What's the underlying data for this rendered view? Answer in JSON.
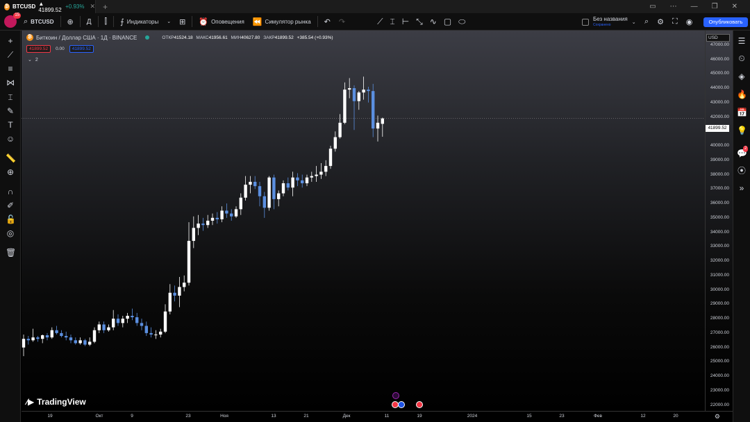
{
  "titlebar": {
    "tab_symbol": "BTCUSD",
    "tab_price": "▲ 41899.52",
    "tab_change": "+0.93%",
    "tab_icon": "bitcoin-icon",
    "controls": [
      "minimize-icon",
      "maximize-icon",
      "close-icon"
    ]
  },
  "toolbar": {
    "avatar_badge": "15",
    "symbol": "BTCUSD",
    "interval": "Д",
    "indicators_label": "Индикаторы",
    "alerts_label": "Оповещения",
    "replay_label": "Симулятор рынка",
    "layout_name": "Без названия",
    "layout_status": "Сохранено",
    "publish_label": "Опубликовать"
  },
  "legend": {
    "title": "Биткоин / Доллар США · 1Д · BINANCE",
    "open_label": "ОТКР",
    "open": "41524.18",
    "high_label": "МАКС",
    "high": "41956.61",
    "low_label": "МИН",
    "low": "40627.80",
    "close_label": "ЗАКР",
    "close": "41899.52",
    "change": "+385.54 (+0.93%)",
    "sell_price": "41899.52",
    "spread": "0.00",
    "buy_price": "41899.52",
    "indicators_count": "2"
  },
  "price_axis": {
    "currency": "USD",
    "last_price": "41899.52",
    "ticks": [
      "47000.00",
      "46000.00",
      "45000.00",
      "44000.00",
      "43000.00",
      "42000.00",
      "41000.00",
      "40000.00",
      "39000.00",
      "38000.00",
      "37000.00",
      "36000.00",
      "35000.00",
      "34000.00",
      "33000.00",
      "32000.00",
      "31000.00",
      "30000.00",
      "29000.00",
      "28000.00",
      "27000.00",
      "26000.00",
      "25000.00",
      "24000.00",
      "23000.00",
      "22000.00"
    ]
  },
  "time_axis": {
    "ticks": [
      "19",
      "Окт",
      "9",
      "23",
      "Ноя",
      "13",
      "21",
      "Дек",
      "11",
      "19",
      "2024",
      "15",
      "23",
      "Фев",
      "12",
      "20"
    ]
  },
  "branding": {
    "logo": "TradingView"
  },
  "chart_data": {
    "type": "candlestick",
    "symbol": "BTCUSD",
    "interval": "1D",
    "ylim": [
      21600,
      48000
    ],
    "up_color": "#ffffff",
    "down_color": "#5b8fe0",
    "candles": [
      [
        26000,
        26900,
        25400,
        26600
      ],
      [
        26600,
        26800,
        26200,
        26500
      ],
      [
        26500,
        27300,
        26400,
        26700
      ],
      [
        26700,
        26800,
        26400,
        26600
      ],
      [
        26600,
        26900,
        26300,
        26850
      ],
      [
        26850,
        27000,
        26500,
        26700
      ],
      [
        26700,
        27400,
        26600,
        27200
      ],
      [
        27200,
        27500,
        26900,
        27000
      ],
      [
        27000,
        27200,
        26700,
        26800
      ],
      [
        26800,
        27100,
        26500,
        26700
      ],
      [
        26700,
        26900,
        26300,
        26500
      ],
      [
        26500,
        26700,
        26200,
        26300
      ],
      [
        26300,
        26700,
        26200,
        26500
      ],
      [
        26500,
        26600,
        26100,
        26200
      ],
      [
        26200,
        26700,
        26100,
        26400
      ],
      [
        26400,
        27400,
        26300,
        27200
      ],
      [
        27200,
        27800,
        27000,
        27600
      ],
      [
        27600,
        27800,
        27000,
        27200
      ],
      [
        27200,
        27600,
        27100,
        27400
      ],
      [
        27400,
        28600,
        27200,
        28000
      ],
      [
        28000,
        28300,
        27500,
        27700
      ],
      [
        27700,
        28200,
        27400,
        28000
      ],
      [
        28000,
        28400,
        27700,
        28200
      ],
      [
        28200,
        28700,
        27900,
        28100
      ],
      [
        28100,
        28400,
        27500,
        27700
      ],
      [
        27700,
        28000,
        27200,
        27500
      ],
      [
        27500,
        27800,
        26800,
        27000
      ],
      [
        27000,
        27400,
        26700,
        26900
      ],
      [
        26900,
        27200,
        26600,
        26900
      ],
      [
        26900,
        27300,
        26700,
        27100
      ],
      [
        27100,
        29000,
        27000,
        28500
      ],
      [
        28500,
        30400,
        28300,
        29800
      ],
      [
        29800,
        30300,
        29200,
        29600
      ],
      [
        29600,
        30900,
        28800,
        30200
      ],
      [
        30200,
        31000,
        29900,
        30500
      ],
      [
        30500,
        34700,
        30300,
        33400
      ],
      [
        33400,
        35100,
        32900,
        34300
      ],
      [
        34300,
        35200,
        33800,
        34600
      ],
      [
        34600,
        35000,
        34100,
        34500
      ],
      [
        34500,
        35200,
        34300,
        34800
      ],
      [
        34800,
        35300,
        34500,
        35000
      ],
      [
        35000,
        35400,
        34600,
        34900
      ],
      [
        34900,
        35800,
        34700,
        35500
      ],
      [
        35500,
        36000,
        35000,
        35300
      ],
      [
        35300,
        35600,
        34800,
        35100
      ],
      [
        35100,
        35800,
        35000,
        35600
      ],
      [
        35600,
        36700,
        35200,
        36400
      ],
      [
        36400,
        37900,
        36200,
        37300
      ],
      [
        37300,
        37900,
        36700,
        37500
      ],
      [
        37500,
        37900,
        37000,
        37200
      ],
      [
        37200,
        37500,
        35800,
        36500
      ],
      [
        36500,
        36800,
        35000,
        35700
      ],
      [
        35700,
        37900,
        35500,
        37800
      ],
      [
        37800,
        38000,
        35600,
        36300
      ],
      [
        36300,
        36900,
        35800,
        36700
      ],
      [
        36700,
        37600,
        36500,
        37400
      ],
      [
        37400,
        37800,
        36900,
        37100
      ],
      [
        37100,
        38200,
        36500,
        37800
      ],
      [
        37800,
        38100,
        37200,
        37600
      ],
      [
        37600,
        38000,
        37100,
        37400
      ],
      [
        37400,
        38000,
        37200,
        37800
      ],
      [
        37800,
        38200,
        37500,
        37900
      ],
      [
        37900,
        38600,
        37500,
        38000
      ],
      [
        38000,
        38800,
        37700,
        38200
      ],
      [
        38200,
        39000,
        37900,
        38600
      ],
      [
        38600,
        40000,
        38400,
        39800
      ],
      [
        39800,
        41000,
        39600,
        40600
      ],
      [
        40600,
        42200,
        40500,
        41600
      ],
      [
        41600,
        44400,
        41500,
        43900
      ],
      [
        43900,
        44700,
        43300,
        44000
      ],
      [
        44000,
        44200,
        41100,
        43100
      ],
      [
        43100,
        43800,
        42500,
        43700
      ],
      [
        43700,
        44800,
        43200,
        43900
      ],
      [
        43900,
        44100,
        43000,
        43800
      ],
      [
        43800,
        44300,
        40600,
        41200
      ],
      [
        41200,
        42100,
        40300,
        41600
      ],
      [
        41524.18,
        41956.61,
        40627.8,
        41899.52
      ]
    ]
  }
}
